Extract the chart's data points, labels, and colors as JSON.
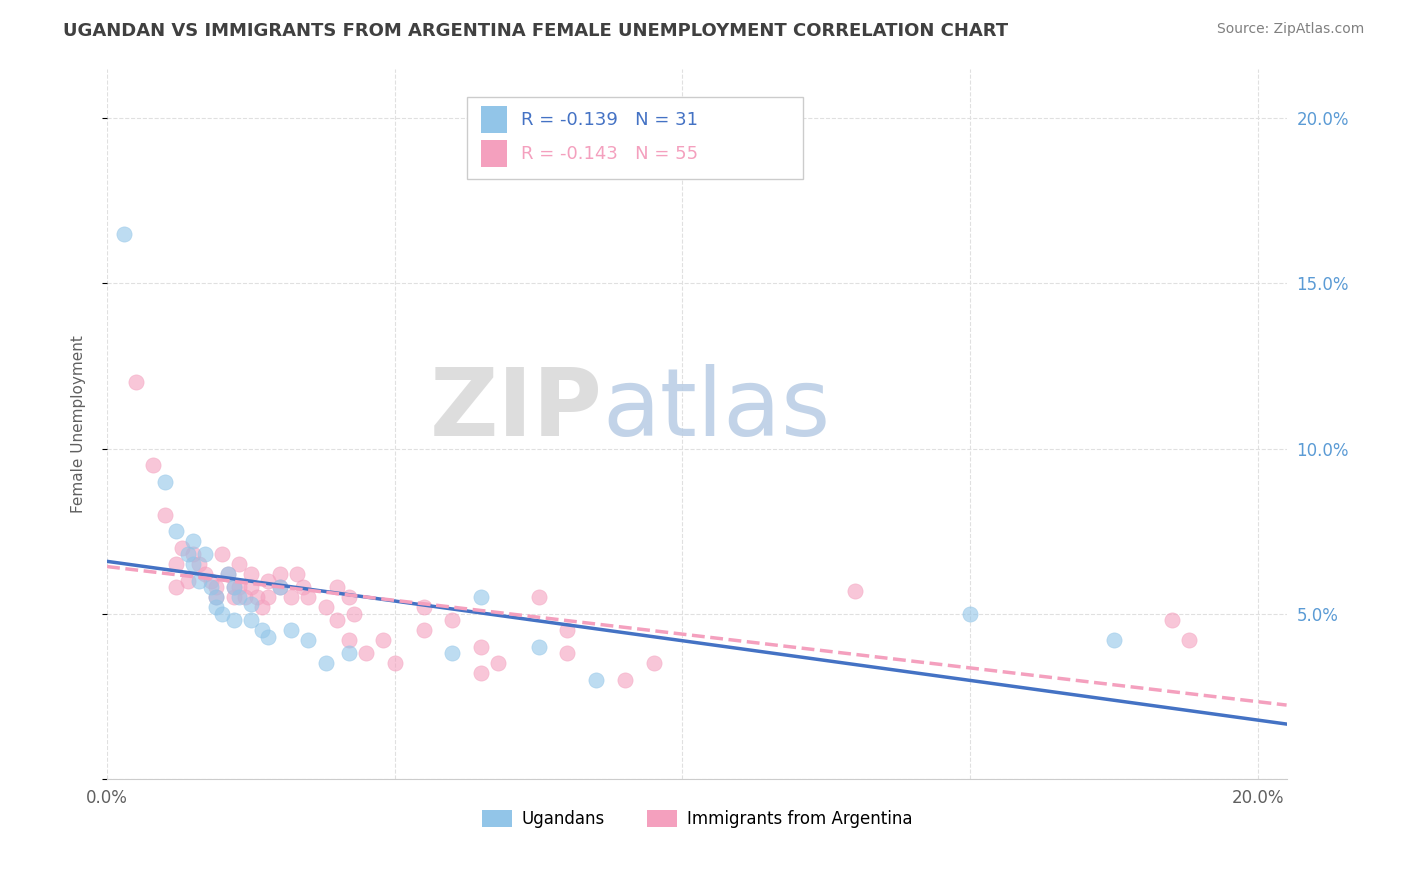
{
  "title": "UGANDAN VS IMMIGRANTS FROM ARGENTINA FEMALE UNEMPLOYMENT CORRELATION CHART",
  "source": "Source: ZipAtlas.com",
  "ylabel": "Female Unemployment",
  "background_color": "#ffffff",
  "xlim": [
    0.0,
    0.205
  ],
  "ylim": [
    0.0,
    0.215
  ],
  "yticks": [
    0.0,
    0.05,
    0.1,
    0.15,
    0.2
  ],
  "ytick_labels_right": [
    "",
    "5.0%",
    "10.0%",
    "15.0%",
    "20.0%"
  ],
  "xticks": [
    0.0,
    0.05,
    0.1,
    0.15,
    0.2
  ],
  "xtick_labels": [
    "0.0%",
    "",
    "",
    "",
    "20.0%"
  ],
  "ugandan_color": "#92C5E8",
  "argentina_color": "#F4A0BE",
  "ugandan_R": -0.139,
  "ugandan_N": 31,
  "argentina_R": -0.143,
  "argentina_N": 55,
  "legend_label1": "Ugandans",
  "legend_label2": "Immigrants from Argentina",
  "watermark_zip": "ZIP",
  "watermark_atlas": "atlas",
  "ugandan_line_color": "#4472C4",
  "argentina_line_color": "#F4A0BE",
  "title_color": "#404040",
  "source_color": "#808080",
  "right_axis_color": "#5B9BD5",
  "grid_color": "#E0E0E0",
  "ugandan_points": [
    [
      0.003,
      0.165
    ],
    [
      0.01,
      0.09
    ],
    [
      0.012,
      0.075
    ],
    [
      0.014,
      0.068
    ],
    [
      0.015,
      0.072
    ],
    [
      0.015,
      0.065
    ],
    [
      0.016,
      0.06
    ],
    [
      0.017,
      0.068
    ],
    [
      0.018,
      0.058
    ],
    [
      0.019,
      0.055
    ],
    [
      0.019,
      0.052
    ],
    [
      0.02,
      0.05
    ],
    [
      0.021,
      0.062
    ],
    [
      0.022,
      0.058
    ],
    [
      0.022,
      0.048
    ],
    [
      0.023,
      0.055
    ],
    [
      0.025,
      0.053
    ],
    [
      0.025,
      0.048
    ],
    [
      0.027,
      0.045
    ],
    [
      0.028,
      0.043
    ],
    [
      0.03,
      0.058
    ],
    [
      0.032,
      0.045
    ],
    [
      0.035,
      0.042
    ],
    [
      0.038,
      0.035
    ],
    [
      0.042,
      0.038
    ],
    [
      0.06,
      0.038
    ],
    [
      0.065,
      0.055
    ],
    [
      0.075,
      0.04
    ],
    [
      0.085,
      0.03
    ],
    [
      0.15,
      0.05
    ],
    [
      0.175,
      0.042
    ]
  ],
  "argentina_points": [
    [
      0.005,
      0.12
    ],
    [
      0.008,
      0.095
    ],
    [
      0.01,
      0.08
    ],
    [
      0.012,
      0.065
    ],
    [
      0.012,
      0.058
    ],
    [
      0.013,
      0.07
    ],
    [
      0.014,
      0.06
    ],
    [
      0.015,
      0.068
    ],
    [
      0.016,
      0.065
    ],
    [
      0.017,
      0.062
    ],
    [
      0.018,
      0.06
    ],
    [
      0.019,
      0.058
    ],
    [
      0.019,
      0.055
    ],
    [
      0.02,
      0.068
    ],
    [
      0.021,
      0.062
    ],
    [
      0.022,
      0.058
    ],
    [
      0.022,
      0.055
    ],
    [
      0.023,
      0.065
    ],
    [
      0.023,
      0.058
    ],
    [
      0.024,
      0.055
    ],
    [
      0.025,
      0.062
    ],
    [
      0.025,
      0.058
    ],
    [
      0.026,
      0.055
    ],
    [
      0.027,
      0.052
    ],
    [
      0.028,
      0.06
    ],
    [
      0.028,
      0.055
    ],
    [
      0.03,
      0.062
    ],
    [
      0.03,
      0.058
    ],
    [
      0.032,
      0.055
    ],
    [
      0.033,
      0.062
    ],
    [
      0.034,
      0.058
    ],
    [
      0.035,
      0.055
    ],
    [
      0.038,
      0.052
    ],
    [
      0.04,
      0.058
    ],
    [
      0.04,
      0.048
    ],
    [
      0.042,
      0.055
    ],
    [
      0.042,
      0.042
    ],
    [
      0.043,
      0.05
    ],
    [
      0.045,
      0.038
    ],
    [
      0.048,
      0.042
    ],
    [
      0.05,
      0.035
    ],
    [
      0.055,
      0.052
    ],
    [
      0.055,
      0.045
    ],
    [
      0.06,
      0.048
    ],
    [
      0.065,
      0.04
    ],
    [
      0.065,
      0.032
    ],
    [
      0.068,
      0.035
    ],
    [
      0.075,
      0.055
    ],
    [
      0.08,
      0.045
    ],
    [
      0.08,
      0.038
    ],
    [
      0.09,
      0.03
    ],
    [
      0.095,
      0.035
    ],
    [
      0.13,
      0.057
    ],
    [
      0.185,
      0.048
    ],
    [
      0.188,
      0.042
    ]
  ]
}
